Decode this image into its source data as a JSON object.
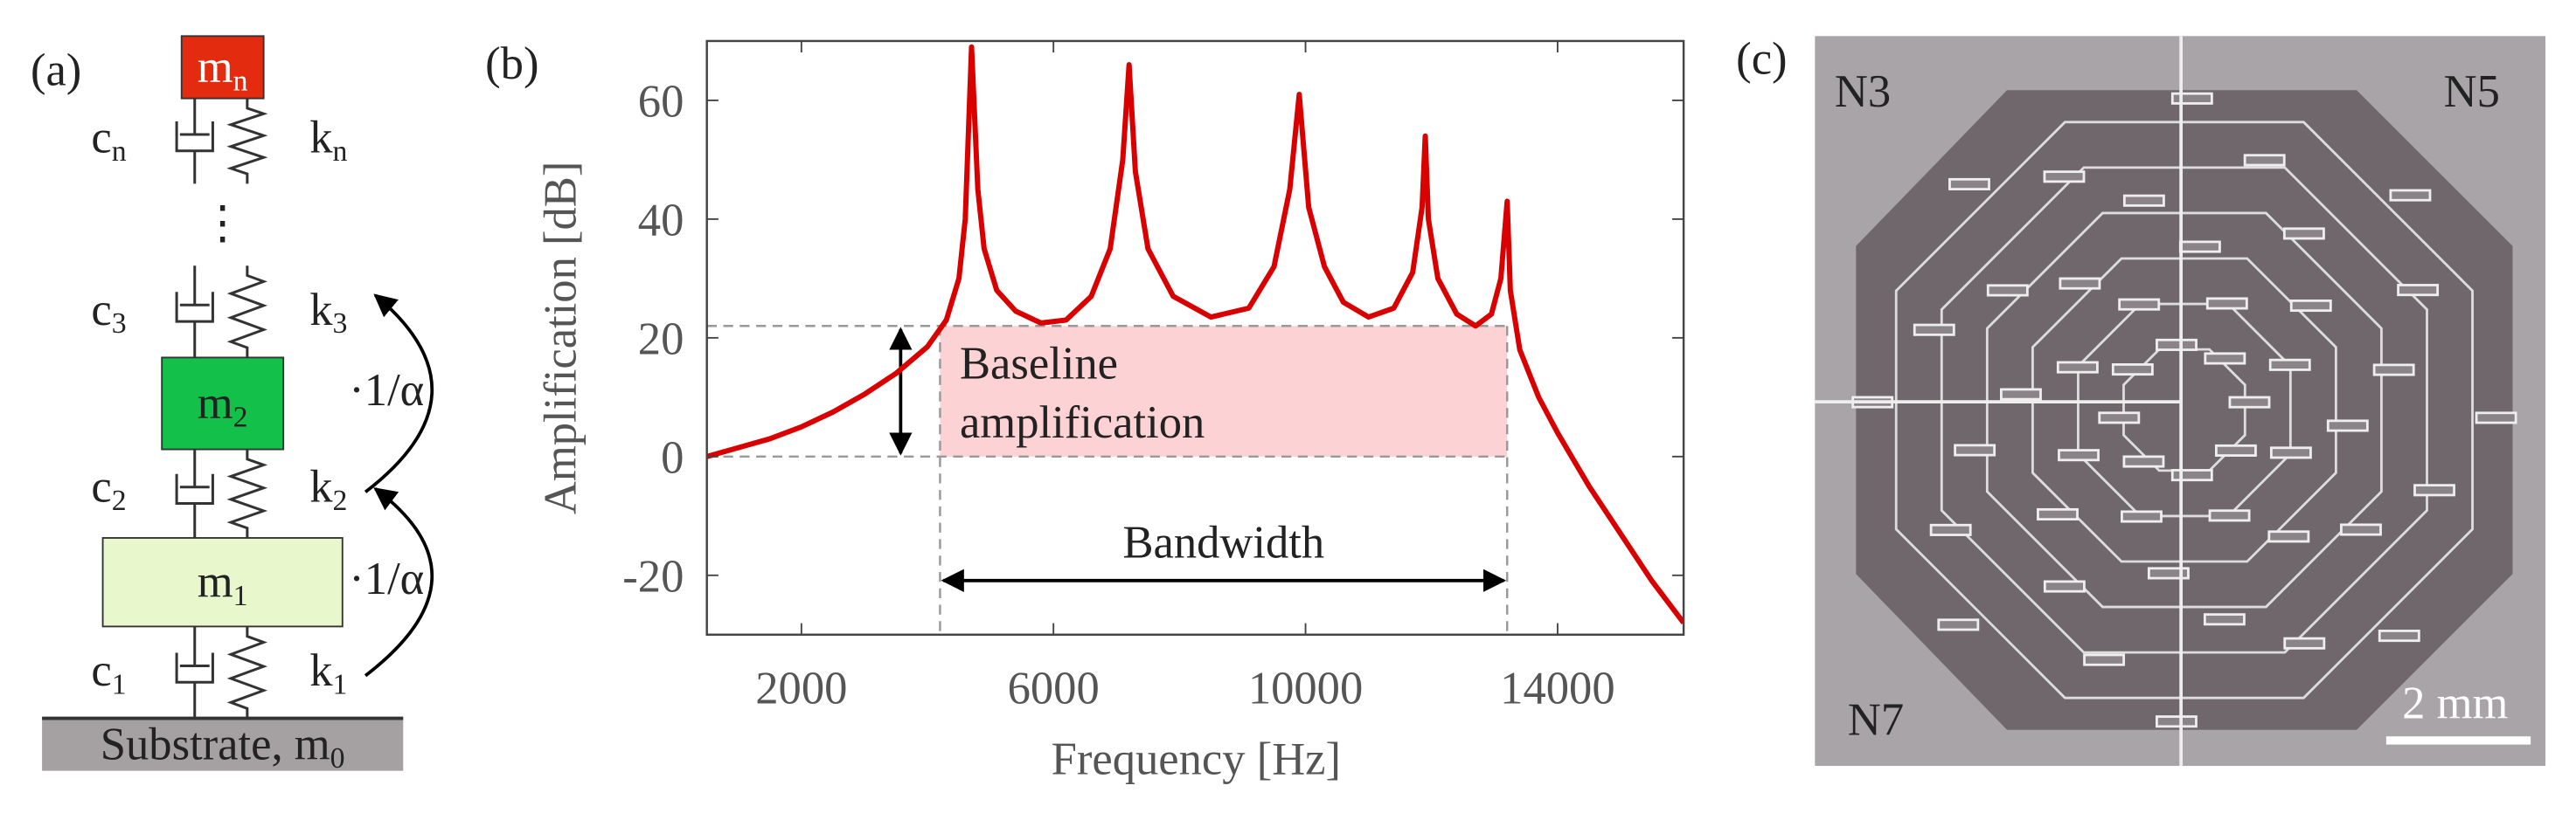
{
  "panel_a": {
    "label": "(a)",
    "masses": [
      {
        "base": "m",
        "sub": "n"
      },
      {
        "base": "m",
        "sub": "2"
      },
      {
        "base": "m",
        "sub": "1"
      }
    ],
    "dampers": [
      {
        "base": "c",
        "sub": "n"
      },
      {
        "base": "c",
        "sub": "3"
      },
      {
        "base": "c",
        "sub": "2"
      },
      {
        "base": "c",
        "sub": "1"
      }
    ],
    "springs": [
      {
        "base": "k",
        "sub": "n"
      },
      {
        "base": "k",
        "sub": "3"
      },
      {
        "base": "k",
        "sub": "2"
      },
      {
        "base": "k",
        "sub": "1"
      }
    ],
    "ellipsis": "⋮",
    "substrate": {
      "base": "Substrate, m",
      "sub": "0"
    },
    "ratios": [
      "·1/α",
      "·1/α"
    ]
  },
  "chart_data": {
    "type": "line",
    "label": "(b)",
    "xlabel": "Frequency [Hz]",
    "ylabel": "Amplification [dB]",
    "x": [
      500,
      1000,
      1500,
      2000,
      2500,
      3000,
      3500,
      4000,
      4300,
      4500,
      4600,
      4700,
      4800,
      4900,
      5100,
      5400,
      5800,
      6200,
      6600,
      6900,
      7100,
      7200,
      7300,
      7500,
      7900,
      8500,
      9100,
      9500,
      9750,
      9900,
      10050,
      10300,
      10600,
      11000,
      11400,
      11700,
      11850,
      11900,
      11950,
      12100,
      12400,
      12700,
      12950,
      13100,
      13200,
      13250,
      13400,
      13700,
      14000,
      14500,
      15000,
      15500,
      16000
    ],
    "values": [
      0,
      1.5,
      3,
      5,
      7.5,
      10.5,
      14,
      18.5,
      23,
      30,
      40,
      69,
      45,
      35,
      28,
      24.5,
      22.5,
      23,
      27,
      35,
      50,
      66,
      48,
      35,
      27,
      23.5,
      25,
      32,
      45,
      61,
      42,
      32,
      26,
      23.5,
      25,
      31,
      42,
      54,
      40,
      30,
      24,
      22,
      24,
      30,
      43,
      28,
      18,
      10,
      4,
      -5,
      -13,
      -21,
      -28
    ],
    "color": "#d90000",
    "xlim": [
      500,
      16000
    ],
    "xticks": [
      2000,
      6000,
      10000,
      14000
    ],
    "ylim": [
      -30,
      70
    ],
    "yticks": [
      -20,
      0,
      20,
      40,
      60
    ],
    "baseline": 22,
    "band": [
      4200,
      13200
    ],
    "shaded_label": [
      "Baseline",
      "amplification"
    ],
    "band_label": "Bandwidth"
  },
  "panel_c": {
    "label": "(c)",
    "quadrants": [
      "N3",
      "N5",
      "N7"
    ],
    "scale_bar": "2 mm"
  }
}
